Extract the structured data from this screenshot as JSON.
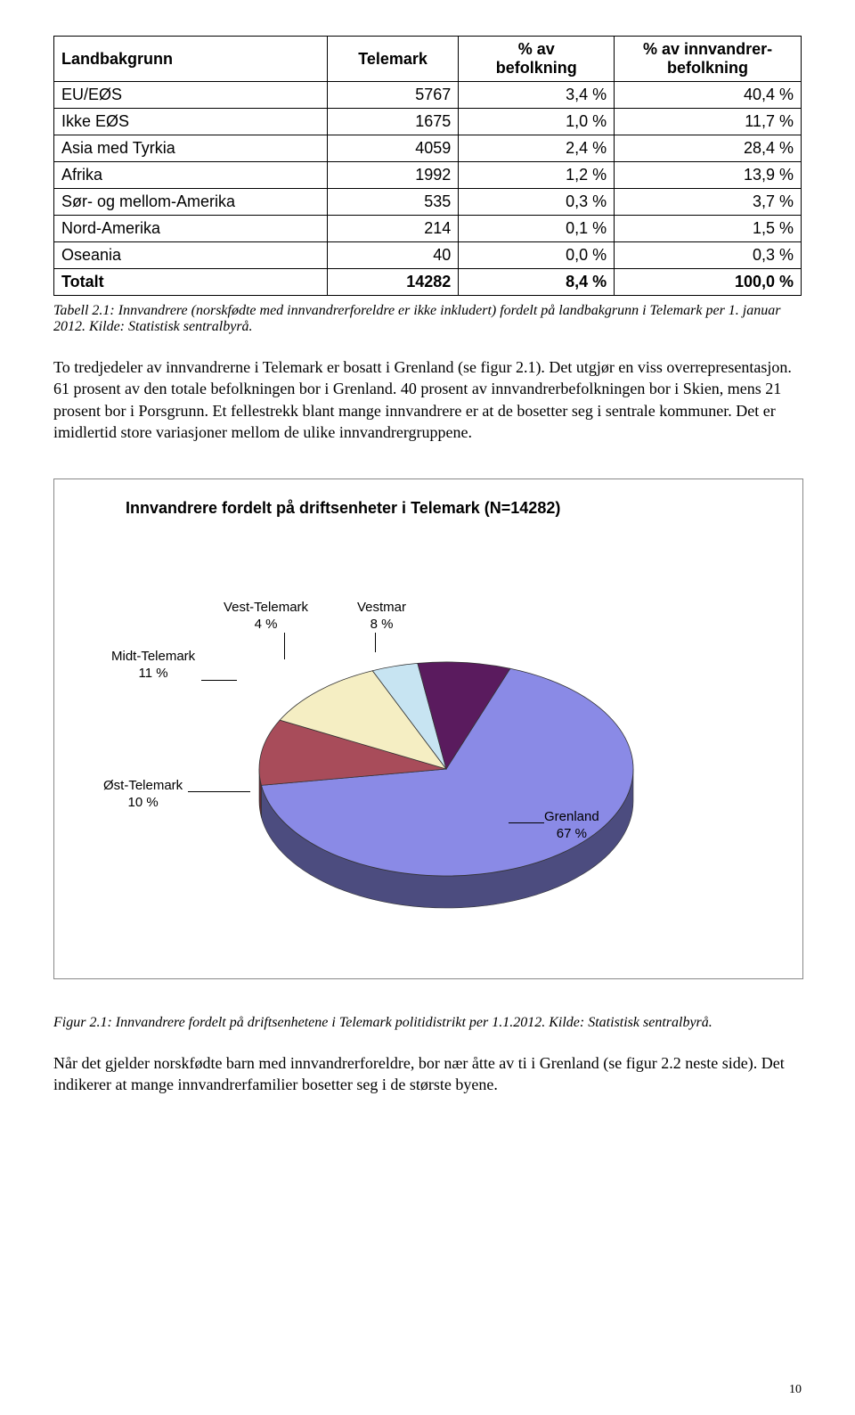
{
  "table": {
    "headers": [
      "Landbakgrunn",
      "Telemark",
      "% av\nbefolkning",
      "% av innvandrer-\nbefolkning"
    ],
    "rows": [
      [
        "EU/EØS",
        "5767",
        "3,4 %",
        "40,4 %"
      ],
      [
        "Ikke EØS",
        "1675",
        "1,0 %",
        "11,7 %"
      ],
      [
        "Asia med Tyrkia",
        "4059",
        "2,4 %",
        "28,4 %"
      ],
      [
        "Afrika",
        "1992",
        "1,2 %",
        "13,9 %"
      ],
      [
        "Sør- og mellom-Amerika",
        "535",
        "0,3 %",
        "3,7 %"
      ],
      [
        "Nord-Amerika",
        "214",
        "0,1 %",
        "1,5 %"
      ],
      [
        "Oseania",
        "40",
        "0,0 %",
        "0,3 %"
      ]
    ],
    "total": [
      "Totalt",
      "14282",
      "8,4 %",
      "100,0 %"
    ]
  },
  "table_caption": "Tabell 2.1: Innvandrere (norskfødte med innvandrerforeldre er ikke inkludert) fordelt på landbakgrunn i Telemark per 1. januar 2012. Kilde: Statistisk sentralbyrå.",
  "para1": "To tredjedeler av innvandrerne i Telemark er bosatt i Grenland (se figur 2.1). Det utgjør en viss overrepresentasjon. 61 prosent av den totale befolkningen bor i Grenland. 40 prosent av innvandrerbefolkningen bor i Skien, mens 21 prosent bor i Porsgrunn. Et fellestrekk blant mange innvandrere er at de bosetter seg i sentrale kommuner. Det er imidlertid store variasjoner mellom de ulike innvandrergruppene.",
  "chart": {
    "title": "Innvandrere fordelt på driftsenheter i Telemark (N=14282)",
    "type": "pie-3d",
    "slices": [
      {
        "label": "Grenland",
        "pct": "67 %",
        "value": 67,
        "color": "#8a8ae6"
      },
      {
        "label": "Øst-Telemark",
        "pct": "10 %",
        "value": 10,
        "color": "#a84c5a"
      },
      {
        "label": "Midt-Telemark",
        "pct": "11 %",
        "value": 11,
        "color": "#f5eec3"
      },
      {
        "label": "Vest-Telemark",
        "pct": "4 %",
        "value": 4,
        "color": "#c7e4f2"
      },
      {
        "label": "Vestmar",
        "pct": "8 %",
        "value": 8,
        "color": "#5a1b5e"
      }
    ],
    "edge_color": "#333333",
    "depth_shade": 0.55
  },
  "figure_caption": "Figur 2.1: Innvandrere fordelt på driftsenhetene i Telemark politidistrikt per 1.1.2012. Kilde: Statistisk sentralbyrå.",
  "para2": "Når det gjelder norskfødte barn med innvandrerforeldre, bor nær åtte av ti i Grenland (se figur 2.2 neste side). Det indikerer at mange innvandrerfamilier bosetter seg i de største byene.",
  "page_number": "10"
}
